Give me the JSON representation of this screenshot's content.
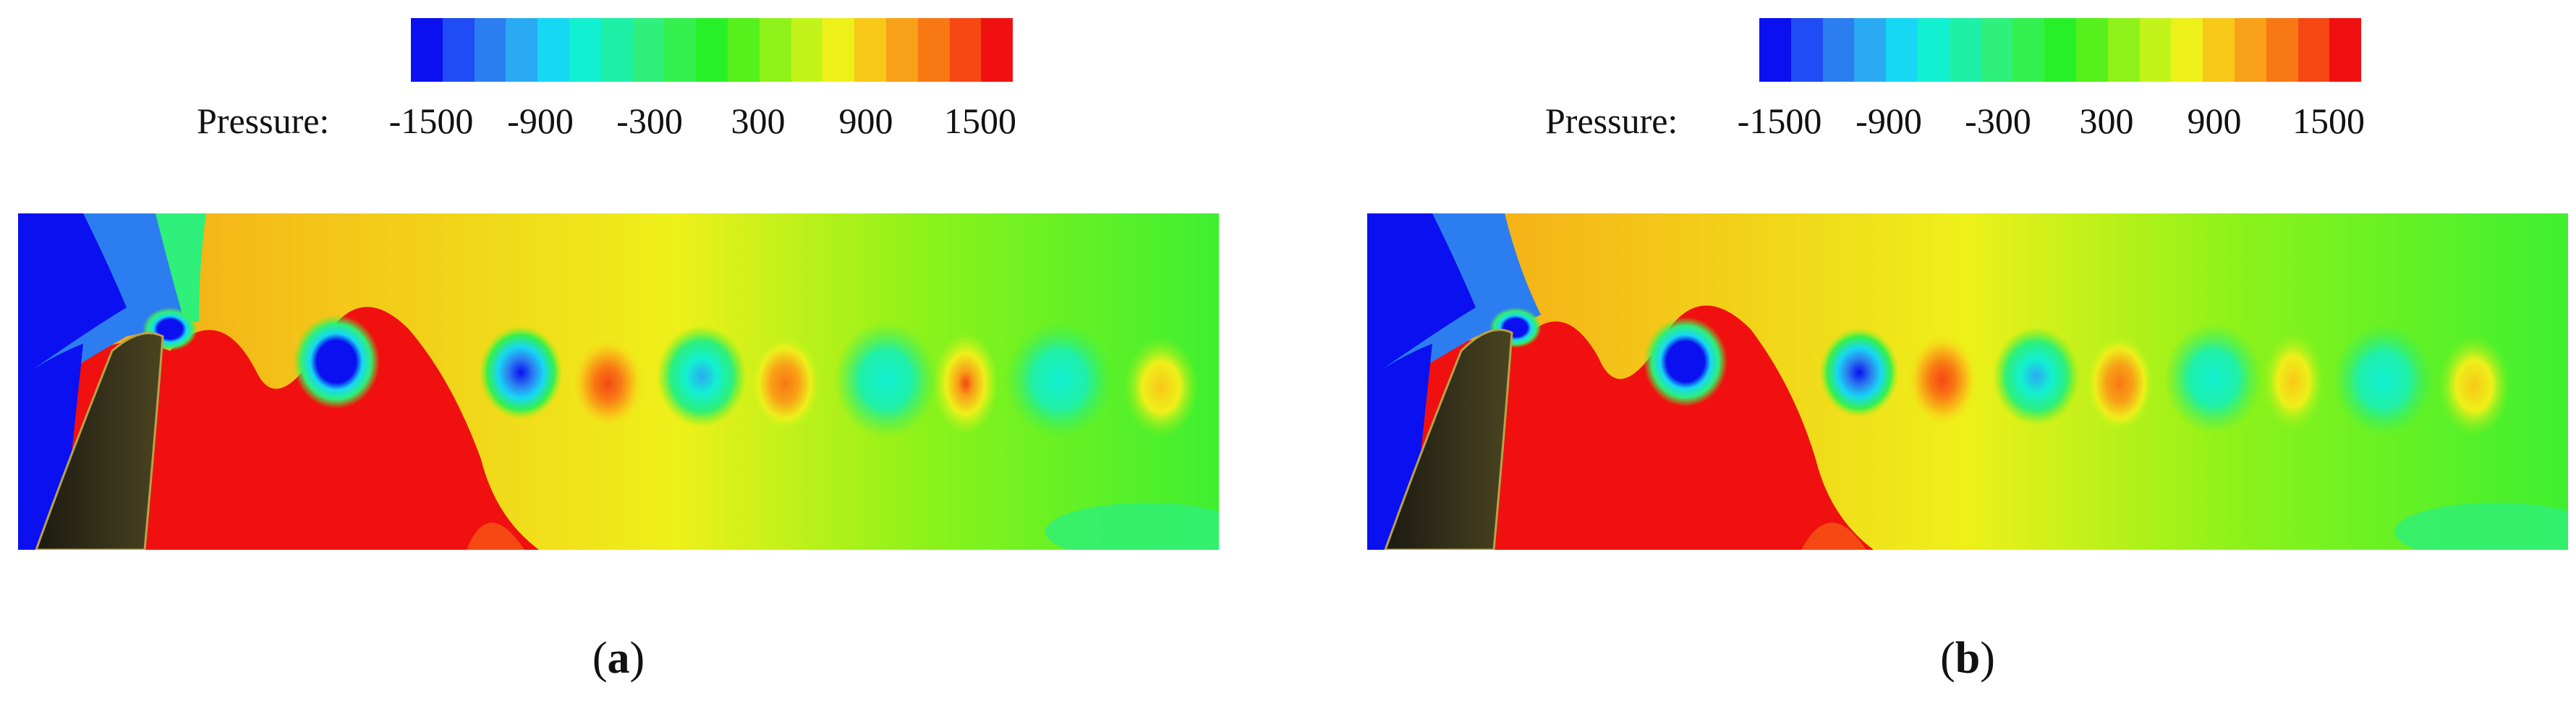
{
  "legend": {
    "title": "Pressure:",
    "ticks": [
      "-1500",
      "-900",
      "-300",
      "300",
      "900",
      "1500"
    ],
    "colors": [
      "#0a10f0",
      "#1f4cf5",
      "#2c7ef0",
      "#2aaaf2",
      "#17d8f4",
      "#12f0d2",
      "#1ff0a8",
      "#2ef07a",
      "#34f04e",
      "#28f028",
      "#56f01c",
      "#8ef21a",
      "#c2f41a",
      "#eef01a",
      "#f8c818",
      "#f8a018",
      "#f87814",
      "#f54812",
      "#f01010"
    ]
  },
  "panels": [
    {
      "caption_open": "(",
      "caption_letter": "a",
      "caption_close": ")"
    },
    {
      "caption_open": "(",
      "caption_letter": "b",
      "caption_close": ")"
    }
  ]
}
